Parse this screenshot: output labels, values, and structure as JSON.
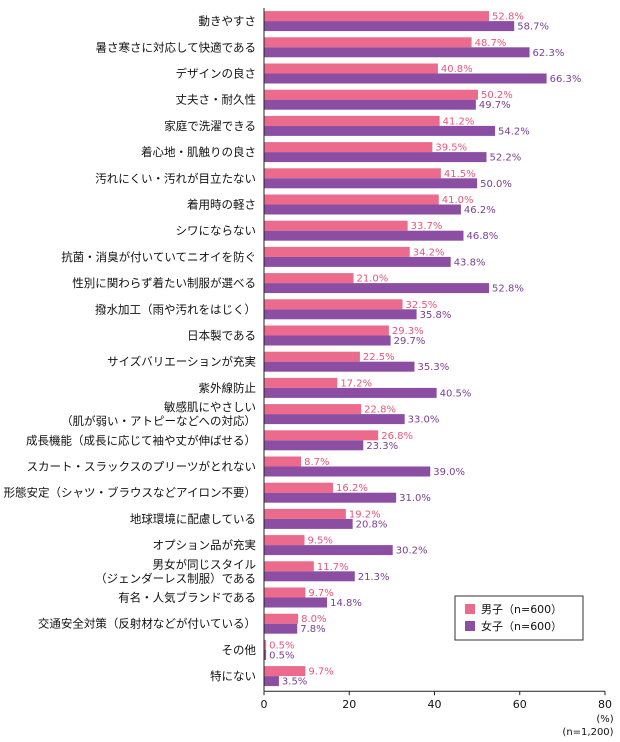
{
  "chart_data": {
    "type": "bar",
    "orientation": "horizontal",
    "categories": [
      [
        "動きやすさ"
      ],
      [
        "暑さ寒さに対応して快適である"
      ],
      [
        "デザインの良さ"
      ],
      [
        "丈夫さ・耐久性"
      ],
      [
        "家庭で洗濯できる"
      ],
      [
        "着心地・肌触りの良さ"
      ],
      [
        "汚れにくい・汚れが目立たない"
      ],
      [
        "着用時の軽さ"
      ],
      [
        "シワにならない"
      ],
      [
        "抗菌・消臭が付いていてニオイを防ぐ"
      ],
      [
        "性別に関わらず着たい制服が選べる"
      ],
      [
        "撥水加工（雨や汚れをはじく）"
      ],
      [
        "日本製である"
      ],
      [
        "サイズバリエーションが充実"
      ],
      [
        "紫外線防止"
      ],
      [
        "敏感肌にやさしい",
        "（肌が弱い・アトピーなどへの対応）"
      ],
      [
        "成長機能（成長に応じて袖や丈が伸ばせる）"
      ],
      [
        "スカート・スラックスのプリーツがとれない"
      ],
      [
        "形態安定（シャツ・ブラウスなどアイロン不要）"
      ],
      [
        "地球環境に配慮している"
      ],
      [
        "オプション品が充実"
      ],
      [
        "男女が同じスタイル",
        "（ジェンダーレス制服）である"
      ],
      [
        "有名・人気ブランドである"
      ],
      [
        "交通安全対策（反射材などが付いている）"
      ],
      [
        "その他"
      ],
      [
        "特にない"
      ]
    ],
    "series": [
      {
        "name": "男子（n=600）",
        "color": "#ec6a8c",
        "values": [
          52.8,
          48.7,
          40.8,
          50.2,
          41.2,
          39.5,
          41.5,
          41.0,
          33.7,
          34.2,
          21.0,
          32.5,
          29.3,
          22.5,
          17.2,
          22.8,
          26.8,
          8.7,
          16.2,
          19.2,
          9.5,
          11.7,
          9.7,
          8.0,
          0.5,
          9.7
        ]
      },
      {
        "name": "女子（n=600）",
        "color": "#8c4ea3",
        "values": [
          58.7,
          62.3,
          66.3,
          49.7,
          54.2,
          52.2,
          50.0,
          46.2,
          46.8,
          43.8,
          52.8,
          35.8,
          29.7,
          35.3,
          40.5,
          33.0,
          23.3,
          39.0,
          31.0,
          20.8,
          30.2,
          21.3,
          14.8,
          7.8,
          0.5,
          3.5
        ]
      }
    ],
    "value_suffix": "%",
    "xlim": [
      0,
      80
    ],
    "xticks": [
      0,
      20,
      40,
      60,
      80
    ],
    "xlabel": "(%)",
    "note": "(n=1,200)",
    "legend_position": "bottom-right",
    "grid": false
  }
}
